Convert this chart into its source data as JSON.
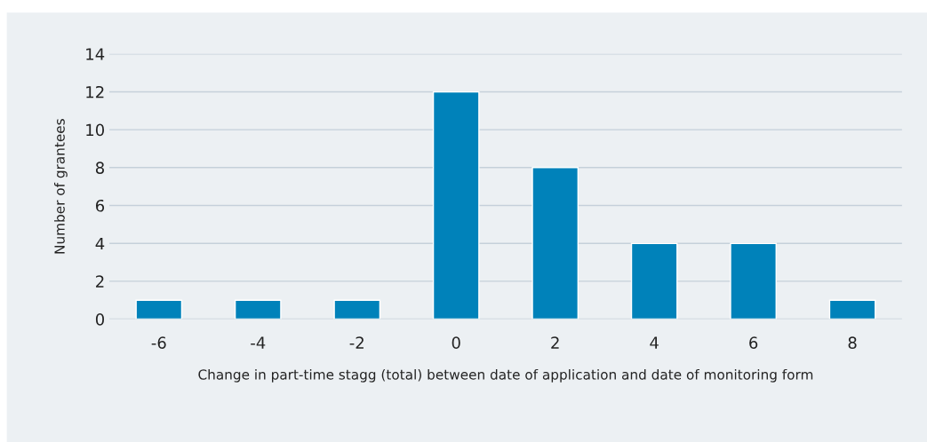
{
  "chart_data": {
    "type": "bar",
    "xlabel": "Change in part-time stagg (total) between date of application and date of monitoring form",
    "ylabel": "Number of grantees",
    "categories": [
      "-6",
      "-4",
      "-2",
      "0",
      "2",
      "4",
      "6",
      "8"
    ],
    "values": [
      1,
      1,
      1,
      12,
      8,
      4,
      4,
      1
    ],
    "color": "#0082ba",
    "ylim": [
      0,
      14
    ],
    "yticks": [
      0,
      2,
      4,
      6,
      8,
      10,
      12,
      14
    ],
    "grid": "y"
  }
}
